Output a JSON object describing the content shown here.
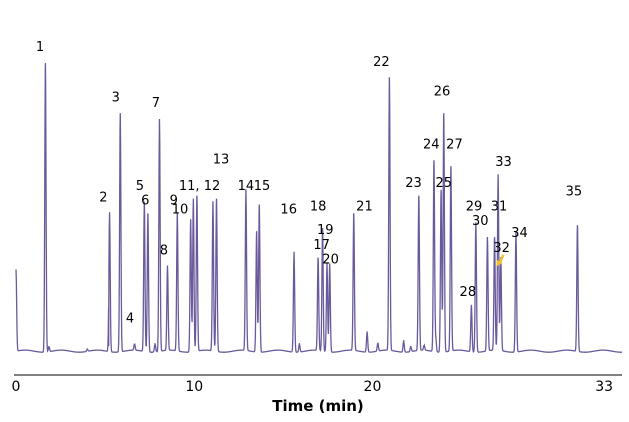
{
  "chart_data": {
    "type": "line",
    "title": "",
    "xlabel": "Time (min)",
    "ylabel": "",
    "xlim": [
      0,
      34
    ],
    "ylim": [
      0,
      100
    ],
    "x_ticks": [
      0,
      10,
      20,
      33
    ],
    "x_tick_labels": [
      "0",
      "10",
      "20",
      "33"
    ],
    "grid": false,
    "legend": "none",
    "colors": {
      "trace": "#6a5a9c",
      "arrow": "#f2c12e",
      "axis": "#000000",
      "text": "#000000"
    },
    "baseline": 1.3,
    "peaks": [
      {
        "label": "",
        "x": 0.0,
        "height": 29
      },
      {
        "label": "1",
        "x": 1.65,
        "height": 99
      },
      {
        "label": "",
        "x": 1.85,
        "height": 3
      },
      {
        "label": "",
        "x": 4.0,
        "height": 2
      },
      {
        "label": "2",
        "x": 5.25,
        "height": 48
      },
      {
        "label": "",
        "x": 5.2,
        "height": 3
      },
      {
        "label": "3",
        "x": 5.85,
        "height": 82
      },
      {
        "label": "4",
        "x": 6.65,
        "height": 3.5
      },
      {
        "label": "5",
        "x": 7.2,
        "height": 52
      },
      {
        "label": "6",
        "x": 7.4,
        "height": 48
      },
      {
        "label": "",
        "x": 7.8,
        "height": 4
      },
      {
        "label": "7",
        "x": 8.05,
        "height": 80
      },
      {
        "label": "8",
        "x": 8.5,
        "height": 30
      },
      {
        "label": "9",
        "x": 9.05,
        "height": 48
      },
      {
        "label": "10",
        "x": 9.8,
        "height": 46
      },
      {
        "label": "11",
        "x": 9.95,
        "height": 53
      },
      {
        "label": "",
        "x": 10.15,
        "height": 54
      },
      {
        "label": "12",
        "x": 11.05,
        "height": 52
      },
      {
        "label": "13",
        "x": 11.25,
        "height": 53
      },
      {
        "label": "14",
        "x": 12.9,
        "height": 56
      },
      {
        "label": "15",
        "x": 13.5,
        "height": 42
      },
      {
        "label": "",
        "x": 13.65,
        "height": 51
      },
      {
        "label": "16",
        "x": 15.6,
        "height": 35
      },
      {
        "label": "",
        "x": 15.9,
        "height": 4
      },
      {
        "label": "17",
        "x": 16.95,
        "height": 33
      },
      {
        "label": "18",
        "x": 17.2,
        "height": 43
      },
      {
        "label": "19",
        "x": 17.45,
        "height": 31
      },
      {
        "label": "20",
        "x": 17.6,
        "height": 31
      },
      {
        "label": "21",
        "x": 18.95,
        "height": 48
      },
      {
        "label": "",
        "x": 19.7,
        "height": 8
      },
      {
        "label": "",
        "x": 20.3,
        "height": 4
      },
      {
        "label": "22",
        "x": 20.95,
        "height": 94
      },
      {
        "label": "",
        "x": 21.75,
        "height": 5
      },
      {
        "label": "",
        "x": 22.15,
        "height": 3
      },
      {
        "label": "23",
        "x": 22.6,
        "height": 54
      },
      {
        "label": "",
        "x": 22.9,
        "height": 3
      },
      {
        "label": "24",
        "x": 23.45,
        "height": 66
      },
      {
        "label": "",
        "x": 23.55,
        "height": 6
      },
      {
        "label": "25",
        "x": 23.85,
        "height": 56
      },
      {
        "label": "26",
        "x": 24.0,
        "height": 82
      },
      {
        "label": "27",
        "x": 24.4,
        "height": 64
      },
      {
        "label": "28",
        "x": 25.55,
        "height": 17
      },
      {
        "label": "29",
        "x": 25.8,
        "height": 45
      },
      {
        "label": "30",
        "x": 26.45,
        "height": 40
      },
      {
        "label": "31",
        "x": 26.85,
        "height": 40
      },
      {
        "label": "33",
        "x": 27.05,
        "height": 61
      },
      {
        "label": "32",
        "x": 27.2,
        "height": 33
      },
      {
        "label": "34",
        "x": 28.05,
        "height": 42
      },
      {
        "label": "35",
        "x": 31.5,
        "height": 44
      }
    ],
    "peak_labels": [
      {
        "text": "1",
        "x": 1.35,
        "y": 103
      },
      {
        "text": "2",
        "x": 4.9,
        "y": 52
      },
      {
        "text": "3",
        "x": 5.6,
        "height_ref": 82,
        "y": 86
      },
      {
        "text": "4",
        "x": 6.4,
        "y": 11
      },
      {
        "text": "5",
        "x": 6.95,
        "y": 56
      },
      {
        "text": "6",
        "x": 7.25,
        "y": 51
      },
      {
        "text": "7",
        "x": 7.85,
        "y": 84
      },
      {
        "text": "8",
        "x": 8.3,
        "y": 34
      },
      {
        "text": "9",
        "x": 8.85,
        "y": 51
      },
      {
        "text": "10",
        "x": 9.2,
        "y": 48
      },
      {
        "text": "11, 12",
        "x": 10.3,
        "y": 56
      },
      {
        "text": "13",
        "x": 11.5,
        "y": 65
      },
      {
        "text": "14",
        "x": 12.9,
        "y": 56
      },
      {
        "text": "15",
        "x": 13.8,
        "y": 56
      },
      {
        "text": "16",
        "x": 15.3,
        "y": 48
      },
      {
        "text": "17",
        "x": 17.15,
        "y": 36
      },
      {
        "text": "18",
        "x": 16.95,
        "y": 49
      },
      {
        "text": "19",
        "x": 17.35,
        "y": 41
      },
      {
        "text": "20",
        "x": 17.65,
        "y": 31
      },
      {
        "text": "21",
        "x": 19.55,
        "y": 49
      },
      {
        "text": "22",
        "x": 20.5,
        "y": 98
      },
      {
        "text": "23",
        "x": 22.3,
        "y": 57
      },
      {
        "text": "24",
        "x": 23.3,
        "y": 70
      },
      {
        "text": "25",
        "x": 24.0,
        "y": 57
      },
      {
        "text": "26",
        "x": 23.9,
        "y": 88
      },
      {
        "text": "27",
        "x": 24.6,
        "y": 70
      },
      {
        "text": "28",
        "x": 25.35,
        "y": 20
      },
      {
        "text": "29",
        "x": 25.7,
        "y": 49
      },
      {
        "text": "30",
        "x": 26.05,
        "y": 44
      },
      {
        "text": "31",
        "x": 27.1,
        "y": 49
      },
      {
        "text": "32",
        "x": 27.25,
        "y": 35
      },
      {
        "text": "33",
        "x": 27.35,
        "y": 64
      },
      {
        "text": "34",
        "x": 28.25,
        "y": 40
      },
      {
        "text": "35",
        "x": 31.3,
        "y": 54
      }
    ],
    "annotations": [
      {
        "type": "arrow",
        "from_x": 27.35,
        "from_y": 34,
        "to_x": 26.95,
        "to_y": 30,
        "color": "#f2c12e"
      }
    ]
  }
}
